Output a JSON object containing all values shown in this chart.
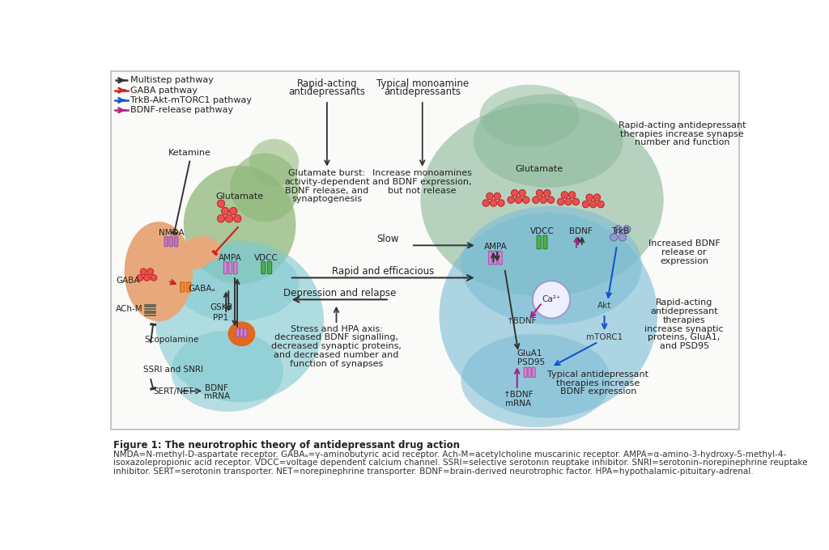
{
  "bg_color": "#ffffff",
  "border_color": "#cccccc",
  "left_neuron_color": "#e8a87c",
  "green_terminal_color": "#8fb87a",
  "cyan_neuron_color": "#7ec8d0",
  "right_green_color": "#8ab89a",
  "right_cyan_color": "#7abcd4",
  "vesicle_red_fill": "#e85050",
  "vesicle_red_stroke": "#c02020",
  "vesicle_blue_fill": "#9898cc",
  "vesicle_blue_stroke": "#6666aa",
  "ampa_color": "#cc88cc",
  "ampa_edge": "#aa55aa",
  "vdcc_color": "#55aa55",
  "vdcc_edge": "#228822",
  "orange_blob": "#e06820",
  "arrow_black": "#333333",
  "arrow_red": "#cc2222",
  "arrow_blue": "#1155cc",
  "arrow_purple": "#aa2288",
  "legend_items": [
    {
      "label": "Multistep pathway",
      "color": "#333333",
      "dashed": true
    },
    {
      "label": "GABA pathway",
      "color": "#cc2222",
      "dashed": false
    },
    {
      "label": "TrkB-Akt-mTORC1 pathway",
      "color": "#1155cc",
      "dashed": false
    },
    {
      "label": "BDNF-release pathway",
      "color": "#aa2288",
      "dashed": false
    }
  ],
  "figure_title": "Figure 1: The neurotrophic theory of antidepressant drug action",
  "caption_line1": "NMDA=N-methyl-D-aspartate receptor. GABAₐ=γ-aminobutyric acid receptor. Ach-M=acetylcholine muscarinic receptor. AMPA=α-amino-3-hydroxy-5-methyl-4-",
  "caption_line2": "isoxazolepropionic acid receptor. VDCC=voltage dependent calcium channel. SSRI=selective serotonin reuptake inhibitor. SNRI=serotonin–norepinephrine reuptake",
  "caption_line3": "inhibitor. SERT=serotonin transporter. NET=norepinephrine transporter. BDNF=brain-derived neurotrophic factor. HPA=hypothalamic-pituitary-adrenal."
}
